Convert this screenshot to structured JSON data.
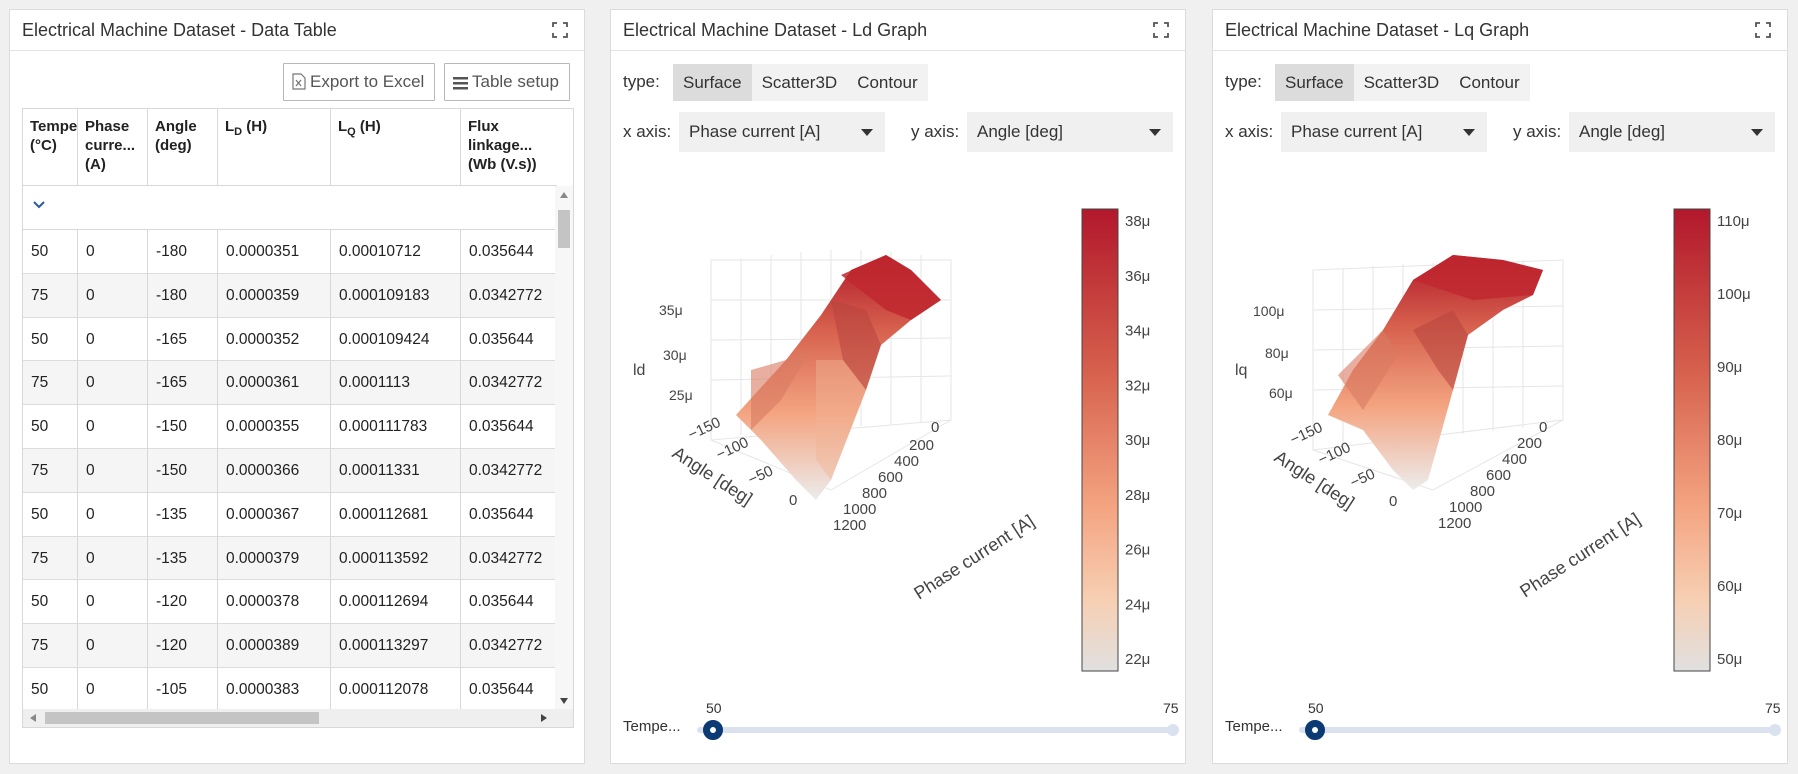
{
  "table_panel": {
    "title": "Electrical Machine Dataset - Data Table",
    "export_label": "Export to Excel",
    "setup_label": "Table setup",
    "columns": [
      {
        "main": "Tempe",
        "line2": "(°C)",
        "line3": ""
      },
      {
        "main": "Phase",
        "line2": "curre...",
        "line3": "(A)"
      },
      {
        "main": "Angle",
        "line2": "(deg)",
        "line3": ""
      },
      {
        "main": "L",
        "sub": "D",
        "tail": " (H)"
      },
      {
        "main": "L",
        "sub": "Q",
        "tail": " (H)"
      },
      {
        "main": "Flux",
        "line2": "linkage...",
        "line3": "(Wb (V.s))"
      }
    ],
    "rows": [
      [
        "50",
        "0",
        "-180",
        "0.0000351",
        "0.00010712",
        "0.035644"
      ],
      [
        "75",
        "0",
        "-180",
        "0.0000359",
        "0.000109183",
        "0.0342772"
      ],
      [
        "50",
        "0",
        "-165",
        "0.0000352",
        "0.000109424",
        "0.035644"
      ],
      [
        "75",
        "0",
        "-165",
        "0.0000361",
        "0.0001113",
        "0.0342772"
      ],
      [
        "50",
        "0",
        "-150",
        "0.0000355",
        "0.000111783",
        "0.035644"
      ],
      [
        "75",
        "0",
        "-150",
        "0.0000366",
        "0.00011331",
        "0.0342772"
      ],
      [
        "50",
        "0",
        "-135",
        "0.0000367",
        "0.000112681",
        "0.035644"
      ],
      [
        "75",
        "0",
        "-135",
        "0.0000379",
        "0.000113592",
        "0.0342772"
      ],
      [
        "50",
        "0",
        "-120",
        "0.0000378",
        "0.000112694",
        "0.035644"
      ],
      [
        "75",
        "0",
        "-120",
        "0.0000389",
        "0.000113297",
        "0.0342772"
      ],
      [
        "50",
        "0",
        "-105",
        "0.0000383",
        "0.000112078",
        "0.035644"
      ]
    ]
  },
  "ld_panel": {
    "title": "Electrical Machine Dataset - Ld Graph",
    "type_label": "type:",
    "types": [
      "Surface",
      "Scatter3D",
      "Contour"
    ],
    "active_type": "Surface",
    "x_axis_label": "x axis:",
    "x_axis_value": "Phase current [A]",
    "y_axis_label": "y axis:",
    "y_axis_value": "Angle [deg]",
    "z_label": "ld",
    "z_ticks": [
      "35μ",
      "30μ",
      "25μ"
    ],
    "angle_ticks": [
      "−150",
      "−100",
      "−50",
      "0"
    ],
    "current_ticks": [
      "0",
      "200",
      "400",
      "600",
      "800",
      "1000",
      "1200"
    ],
    "angle_title": "Angle [deg]",
    "current_title": "Phase current [A]",
    "colorbar_ticks": [
      "38μ",
      "36μ",
      "34μ",
      "32μ",
      "30μ",
      "28μ",
      "26μ",
      "24μ",
      "22μ"
    ],
    "slider_label": "Tempe...",
    "slider_min": "50",
    "slider_max": "75"
  },
  "lq_panel": {
    "title": "Electrical Machine Dataset - Lq Graph",
    "type_label": "type:",
    "types": [
      "Surface",
      "Scatter3D",
      "Contour"
    ],
    "active_type": "Surface",
    "x_axis_label": "x axis:",
    "x_axis_value": "Phase current [A]",
    "y_axis_label": "y axis:",
    "y_axis_value": "Angle [deg]",
    "z_label": "lq",
    "z_ticks": [
      "100μ",
      "80μ",
      "60μ"
    ],
    "angle_ticks": [
      "−150",
      "−100",
      "−50",
      "0"
    ],
    "current_ticks": [
      "0",
      "200",
      "400",
      "600",
      "800",
      "1000",
      "1200"
    ],
    "angle_title": "Angle [deg]",
    "current_title": "Phase current [A]",
    "colorbar_ticks": [
      "110μ",
      "100μ",
      "90μ",
      "80μ",
      "70μ",
      "60μ",
      "50μ"
    ],
    "slider_label": "Tempe...",
    "slider_min": "50",
    "slider_max": "75"
  },
  "colors": {
    "accent": "#0b3a75",
    "surface_high": "#b2182b",
    "surface_mid": "#f4a582",
    "surface_low": "#e0e0e0"
  }
}
